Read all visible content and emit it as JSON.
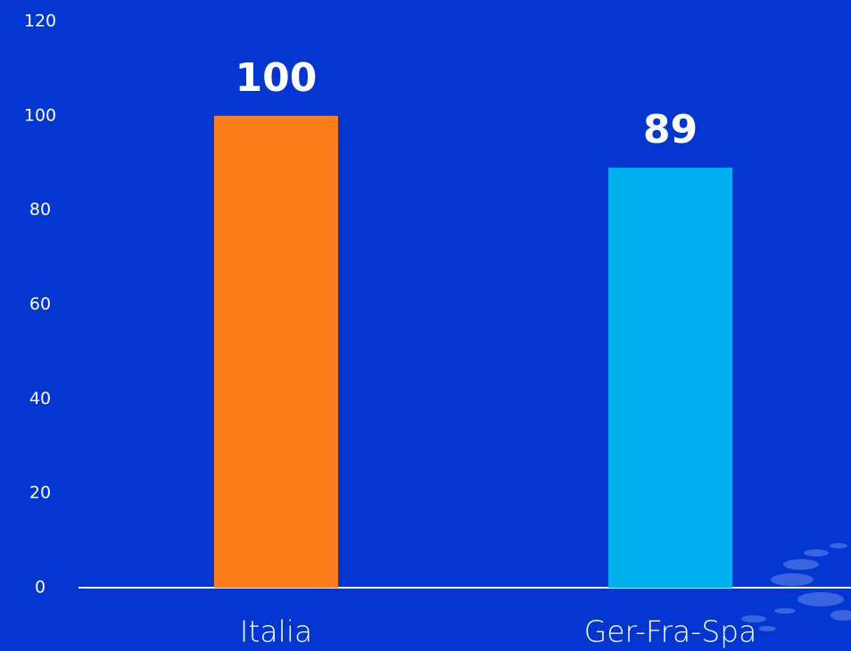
{
  "chart_data": {
    "type": "bar",
    "categories": [
      "Italia",
      "Ger-Fra-Spa"
    ],
    "values": [
      100,
      89
    ],
    "colors": [
      "#fd7e1a",
      "#00b0ee"
    ],
    "ylim": [
      0,
      120
    ],
    "yticks": [
      0,
      20,
      40,
      60,
      80,
      100,
      120
    ],
    "data_labels": true,
    "grid": false
  }
}
